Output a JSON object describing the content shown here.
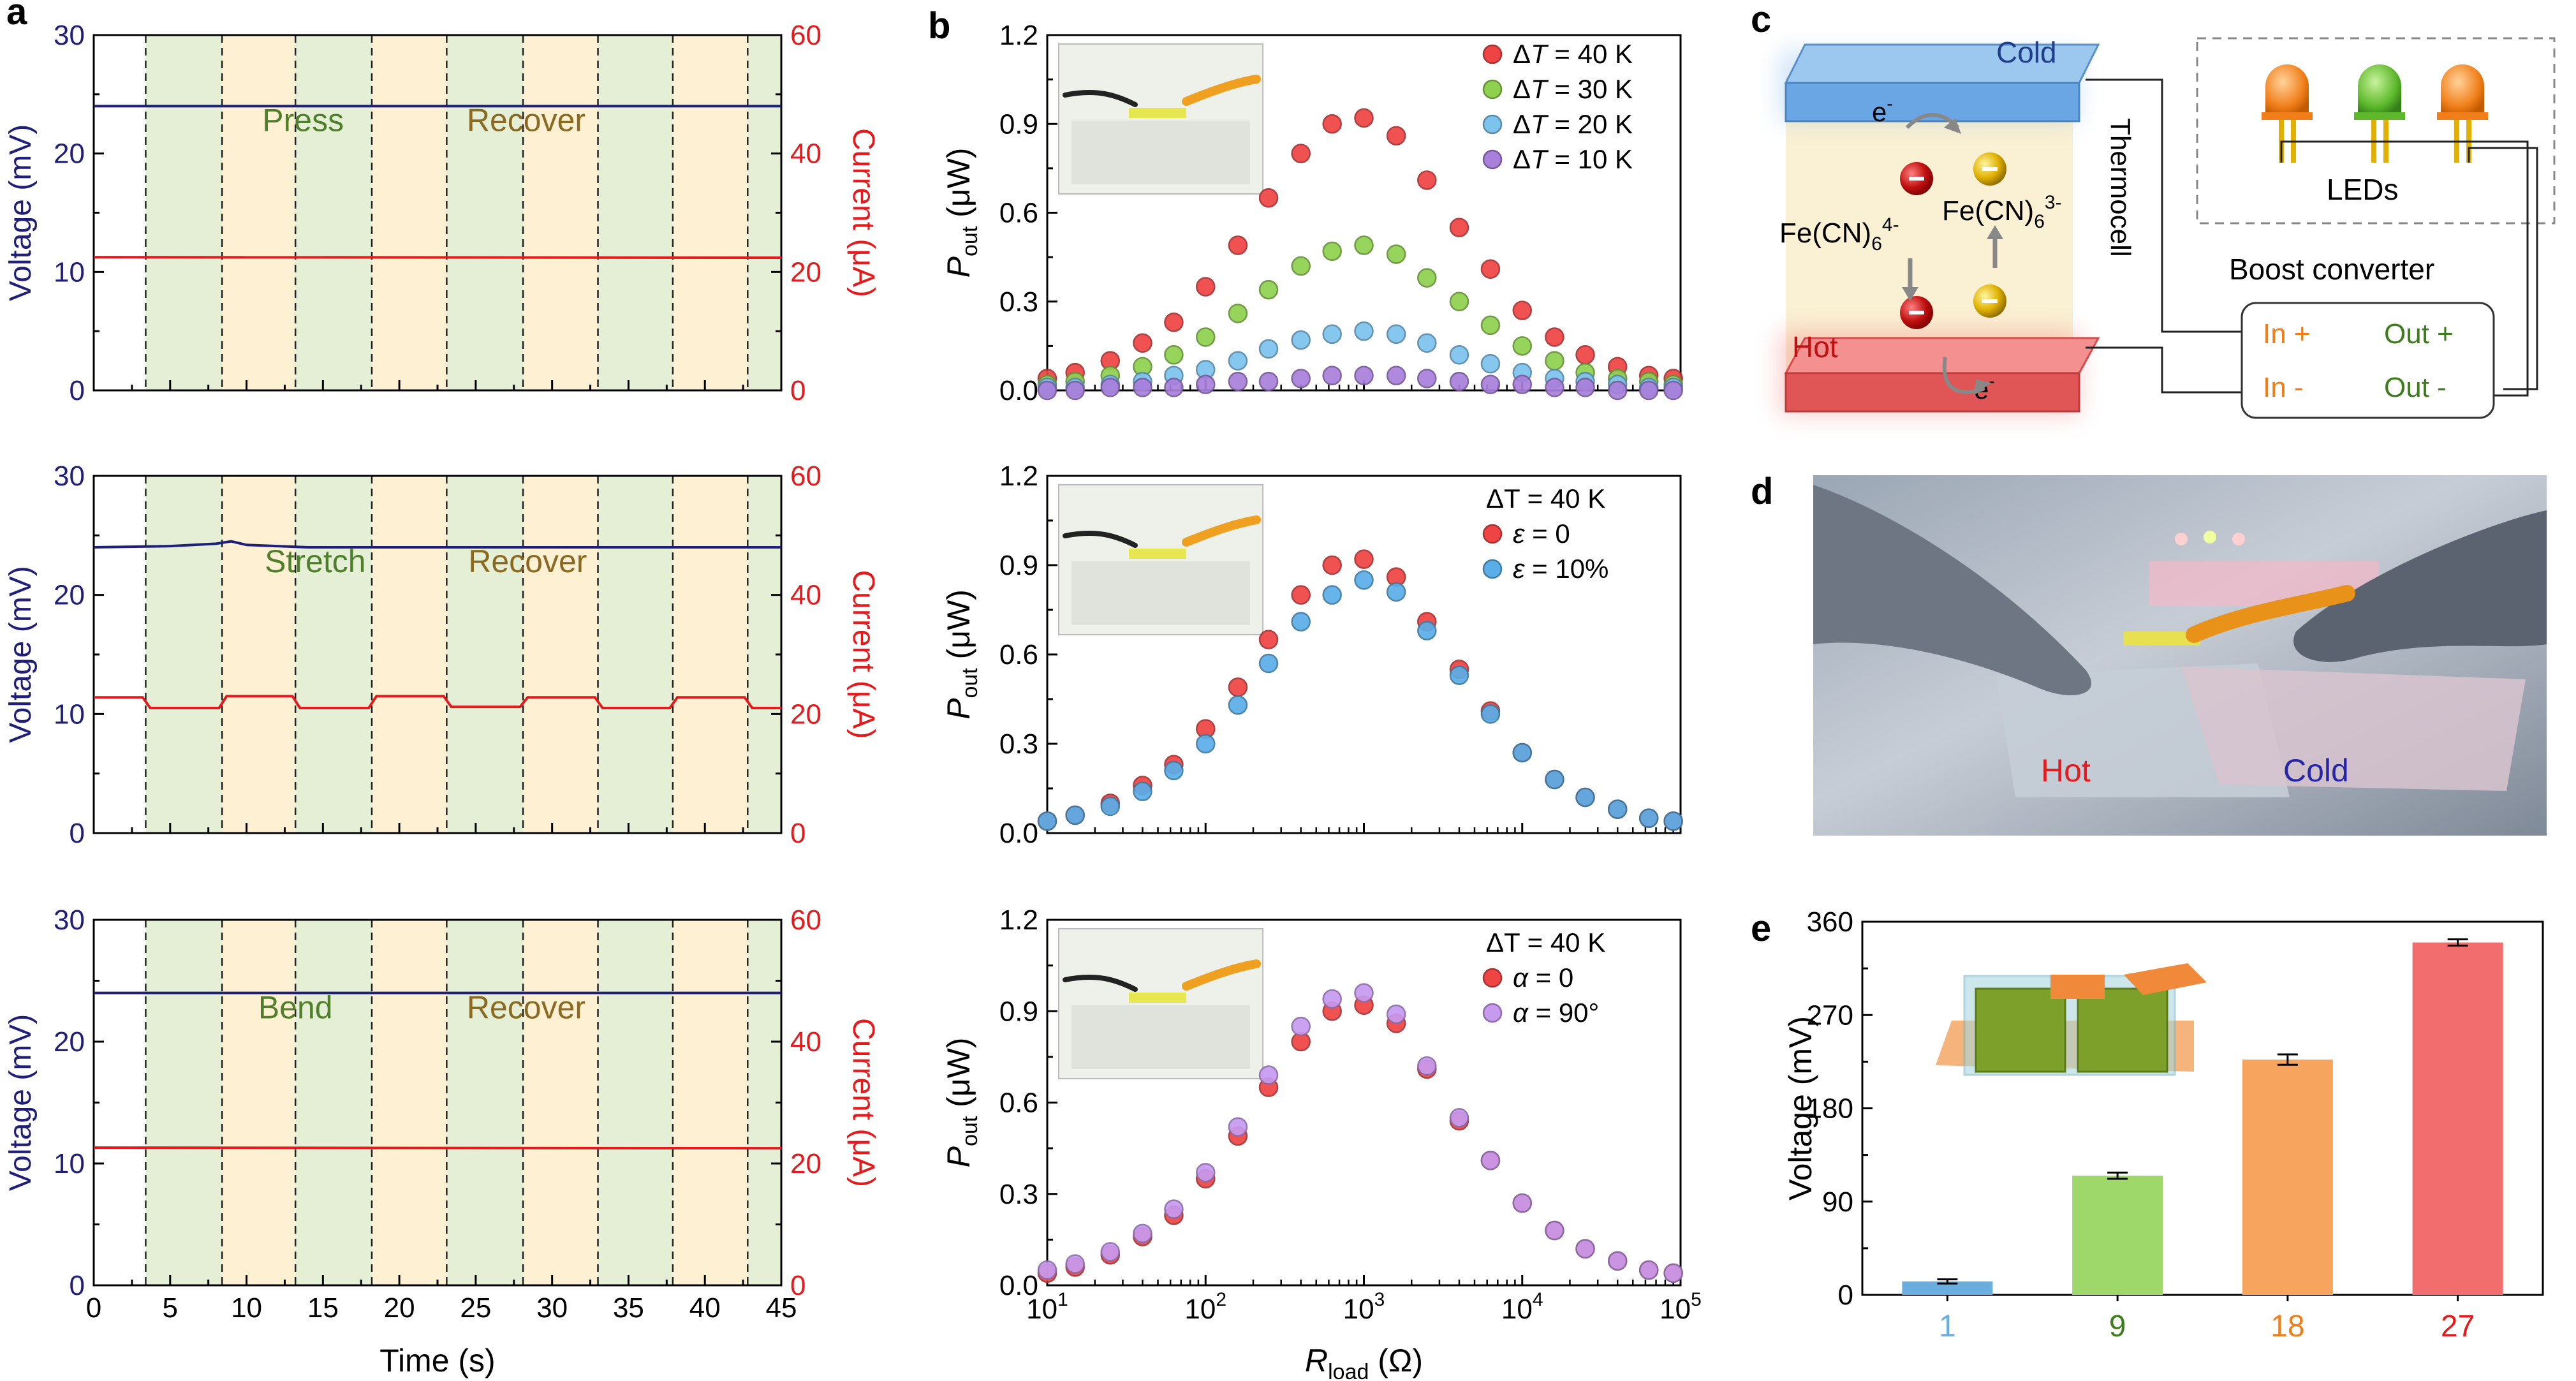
{
  "colors": {
    "voltage": "#1f1f7a",
    "current": "#e41a1c",
    "green_shade": "#e4efd6",
    "yellow_shade": "#fdf0d3",
    "dT40": "#ef4444",
    "dT30": "#8fd14f",
    "dT20": "#7cc3ee",
    "dT10": "#a97fdc",
    "strain": "#5aaee8",
    "angle": "#c79af0",
    "bar1": "#6aaee0",
    "bar9": "#9ed86a",
    "bar18": "#f7a45e",
    "bar27": "#f26d6d",
    "orange_text": "#f07f1a",
    "green_text": "#3e7d1e"
  },
  "panel_letters": {
    "a": "a",
    "b": "b",
    "c": "c",
    "d": "d",
    "e": "e"
  },
  "panel_a": {
    "x_label": "Time (s)",
    "left_label": "Voltage (mV)",
    "right_label": "Current (μA)",
    "x_ticks": [
      "0",
      "5",
      "10",
      "15",
      "20",
      "25",
      "30",
      "35",
      "40",
      "45"
    ],
    "left_ticks": [
      "0",
      "10",
      "20",
      "30"
    ],
    "right_ticks": [
      "0",
      "20",
      "40",
      "60"
    ],
    "dashed_times": [
      3.4,
      8.4,
      13.2,
      18.2,
      23.1,
      28.1,
      33.0,
      37.9,
      42.8
    ],
    "rows": [
      {
        "action": "Press",
        "recover": "Recover"
      },
      {
        "action": "Stretch",
        "recover": "Recover"
      },
      {
        "action": "Bend",
        "recover": "Recover"
      }
    ]
  },
  "panel_b": {
    "y_label": "P",
    "y_label_sub": "out",
    "y_label_unit": " (μW)",
    "x_label": "R",
    "x_label_sub": "load",
    "x_label_unit": " (Ω)",
    "y_ticks": [
      "0.0",
      "0.3",
      "0.6",
      "0.9",
      "1.2"
    ],
    "x_tick_base": "10",
    "x_tick_exps": [
      "1",
      "2",
      "3",
      "4",
      "5"
    ],
    "legend_top": [
      {
        "prefix": "Δ",
        "var": "T",
        "rest": " = 40 K"
      },
      {
        "prefix": "Δ",
        "var": "T",
        "rest": " = 30 K"
      },
      {
        "prefix": "Δ",
        "var": "T",
        "rest": " = 20 K"
      },
      {
        "prefix": "Δ",
        "var": "T",
        "rest": " = 10 K"
      }
    ],
    "legend_mid": {
      "head": "ΔT = 40 K",
      "items": [
        {
          "var": "ε",
          "rest": " = 0"
        },
        {
          "var": "ε",
          "rest": " = 10%"
        }
      ]
    },
    "legend_bot": {
      "head": "ΔT = 40 K",
      "items": [
        {
          "var": "α",
          "rest": " = 0"
        },
        {
          "var": "α",
          "rest": " = 90°"
        }
      ]
    }
  },
  "panel_c": {
    "cold": "Cold",
    "hot": "Hot",
    "electron": "e",
    "electron_sup": "-",
    "fe4": "Fe(CN)",
    "fe4_sub": "6",
    "fe4_sup": "4-",
    "fe3": "Fe(CN)",
    "fe3_sub": "6",
    "fe3_sup": "3-",
    "thermocell": "Thermocell",
    "leds": "LEDs",
    "boost": "Boost converter",
    "in_plus": "In +",
    "out_plus": "Out +",
    "in_minus": "In -",
    "out_minus": "Out -"
  },
  "panel_d": {
    "hot": "Hot",
    "cold": "Cold"
  },
  "panel_e": {
    "y_label": "Voltage (mV)",
    "y_ticks": [
      "0",
      "90",
      "180",
      "270",
      "360"
    ]
  },
  "chart_data": [
    {
      "type": "line",
      "panel": "a-top",
      "x_range": [
        0,
        45
      ],
      "series": [
        {
          "name": "Voltage (mV)",
          "axis": "left",
          "ylim": [
            0,
            30
          ],
          "x": [
            0,
            45
          ],
          "y": [
            24.0,
            24.0
          ]
        },
        {
          "name": "Current (μA)",
          "axis": "right",
          "ylim": [
            0,
            60
          ],
          "x": [
            0,
            45
          ],
          "y": [
            22.5,
            22.4
          ]
        }
      ]
    },
    {
      "type": "line",
      "panel": "a-middle",
      "x_range": [
        0,
        45
      ],
      "series": [
        {
          "name": "Voltage (mV)",
          "axis": "left",
          "ylim": [
            0,
            30
          ],
          "x": [
            0,
            5,
            8,
            9,
            10,
            14,
            20,
            30,
            45
          ],
          "y": [
            24.0,
            24.1,
            24.3,
            24.5,
            24.2,
            24.0,
            24.0,
            24.0,
            24.0
          ]
        },
        {
          "name": "Current (μA)",
          "axis": "right",
          "ylim": [
            0,
            60
          ],
          "x": [
            0,
            3.2,
            3.7,
            8.2,
            8.7,
            13.0,
            13.5,
            18.0,
            18.5,
            22.9,
            23.4,
            27.9,
            28.4,
            32.8,
            33.3,
            37.7,
            38.2,
            42.6,
            43.1,
            45
          ],
          "y": [
            22.8,
            22.8,
            21.0,
            21.0,
            23.0,
            23.0,
            21.0,
            21.0,
            23.0,
            23.0,
            21.2,
            21.2,
            22.8,
            22.8,
            21.0,
            21.0,
            22.8,
            22.8,
            21.0,
            21.0
          ]
        }
      ]
    },
    {
      "type": "line",
      "panel": "a-bottom",
      "x_range": [
        0,
        45
      ],
      "series": [
        {
          "name": "Voltage (mV)",
          "axis": "left",
          "ylim": [
            0,
            30
          ],
          "x": [
            0,
            45
          ],
          "y": [
            24.0,
            24.0
          ]
        },
        {
          "name": "Current (μA)",
          "axis": "right",
          "ylim": [
            0,
            60
          ],
          "x": [
            0,
            45
          ],
          "y": [
            22.6,
            22.5
          ]
        }
      ]
    },
    {
      "type": "scatter",
      "panel": "b-top",
      "xscale": "log",
      "x_range": [
        10,
        100000
      ],
      "ylim": [
        0,
        1.2
      ],
      "x": [
        10,
        15,
        25,
        40,
        63,
        100,
        160,
        250,
        400,
        630,
        1000,
        1600,
        2500,
        4000,
        6300,
        10000,
        16000,
        25000,
        40000,
        63000,
        90000
      ],
      "series": [
        {
          "name": "ΔT = 40 K",
          "values": [
            0.04,
            0.06,
            0.1,
            0.16,
            0.23,
            0.35,
            0.49,
            0.65,
            0.8,
            0.9,
            0.92,
            0.86,
            0.71,
            0.55,
            0.41,
            0.27,
            0.18,
            0.12,
            0.08,
            0.05,
            0.04
          ]
        },
        {
          "name": "ΔT = 30 K",
          "values": [
            0.02,
            0.03,
            0.05,
            0.08,
            0.12,
            0.18,
            0.26,
            0.34,
            0.42,
            0.47,
            0.49,
            0.46,
            0.38,
            0.3,
            0.22,
            0.15,
            0.1,
            0.06,
            0.04,
            0.03,
            0.02
          ]
        },
        {
          "name": "ΔT = 20 K",
          "values": [
            0.01,
            0.01,
            0.02,
            0.03,
            0.05,
            0.07,
            0.1,
            0.14,
            0.17,
            0.19,
            0.2,
            0.19,
            0.16,
            0.12,
            0.09,
            0.06,
            0.04,
            0.03,
            0.02,
            0.01,
            0.01
          ]
        },
        {
          "name": "ΔT = 10 K",
          "values": [
            0.0,
            0.0,
            0.01,
            0.01,
            0.01,
            0.02,
            0.03,
            0.03,
            0.04,
            0.05,
            0.05,
            0.05,
            0.04,
            0.03,
            0.02,
            0.02,
            0.01,
            0.01,
            0.0,
            0.0,
            0.0
          ]
        }
      ]
    },
    {
      "type": "scatter",
      "panel": "b-middle",
      "xscale": "log",
      "x_range": [
        10,
        100000
      ],
      "ylim": [
        0,
        1.2
      ],
      "x": [
        10,
        15,
        25,
        40,
        63,
        100,
        160,
        250,
        400,
        630,
        1000,
        1600,
        2500,
        4000,
        6300,
        10000,
        16000,
        25000,
        40000,
        63000,
        90000
      ],
      "series": [
        {
          "name": "ε = 0",
          "values": [
            0.04,
            0.06,
            0.1,
            0.16,
            0.23,
            0.35,
            0.49,
            0.65,
            0.8,
            0.9,
            0.92,
            0.86,
            0.71,
            0.55,
            0.41,
            0.27,
            0.18,
            0.12,
            0.08,
            0.05,
            0.04
          ]
        },
        {
          "name": "ε = 10%",
          "values": [
            0.04,
            0.06,
            0.09,
            0.14,
            0.21,
            0.3,
            0.43,
            0.57,
            0.71,
            0.8,
            0.85,
            0.81,
            0.68,
            0.53,
            0.4,
            0.27,
            0.18,
            0.12,
            0.08,
            0.05,
            0.04
          ]
        }
      ]
    },
    {
      "type": "scatter",
      "panel": "b-bottom",
      "xscale": "log",
      "x_range": [
        10,
        100000
      ],
      "ylim": [
        0,
        1.2
      ],
      "x": [
        10,
        15,
        25,
        40,
        63,
        100,
        160,
        250,
        400,
        630,
        1000,
        1600,
        2500,
        4000,
        6300,
        10000,
        16000,
        25000,
        40000,
        63000,
        90000
      ],
      "series": [
        {
          "name": "α = 0",
          "values": [
            0.04,
            0.06,
            0.1,
            0.16,
            0.23,
            0.35,
            0.49,
            0.65,
            0.8,
            0.9,
            0.92,
            0.86,
            0.71,
            0.54,
            0.41,
            0.27,
            0.18,
            0.12,
            0.08,
            0.05,
            0.04
          ]
        },
        {
          "name": "α = 90°",
          "values": [
            0.05,
            0.07,
            0.11,
            0.17,
            0.25,
            0.37,
            0.52,
            0.69,
            0.85,
            0.94,
            0.96,
            0.89,
            0.72,
            0.55,
            0.41,
            0.27,
            0.18,
            0.12,
            0.08,
            0.05,
            0.04
          ]
        }
      ]
    },
    {
      "type": "bar",
      "panel": "e",
      "categories": [
        "1",
        "9",
        "18",
        "27"
      ],
      "values": [
        13,
        115,
        227,
        340
      ],
      "errors": [
        2,
        3,
        5,
        3
      ],
      "ylim": [
        0,
        360
      ],
      "ylabel": "Voltage (mV)"
    }
  ]
}
